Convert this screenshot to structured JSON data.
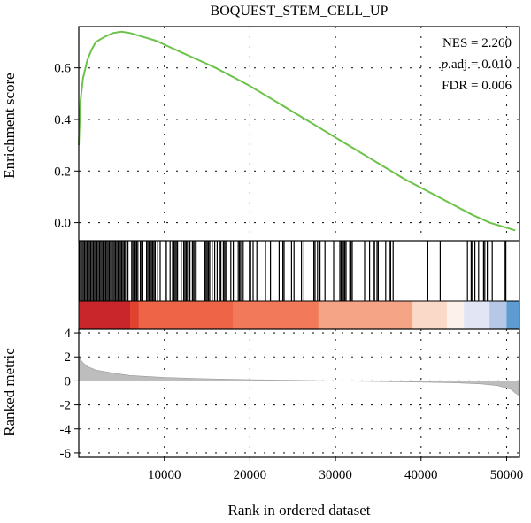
{
  "chart_data": {
    "type": "line",
    "title": "BOQUEST_STEM_CELL_UP",
    "xlabel": "Rank in ordered dataset",
    "stats": {
      "nes": "NES = 2.260",
      "padj_prefix": "p",
      "padj_rest": ".adj = 0.010",
      "fdr": "FDR = 0.006"
    },
    "xlim": [
      0,
      51500
    ],
    "x_ticks": [
      10000,
      20000,
      30000,
      40000,
      50000
    ],
    "x_tick_labels": [
      "10000",
      "20000",
      "30000",
      "40000",
      "50000"
    ],
    "enrichment": {
      "ylabel": "Enrichment score",
      "ylim": [
        -0.07,
        0.76
      ],
      "y_ticks": [
        0.0,
        0.2,
        0.4,
        0.6
      ],
      "y_tick_labels": [
        "0.0",
        "0.2",
        "0.4",
        "0.6"
      ],
      "line_color": "#6cc24a",
      "curve": [
        [
          0,
          0.3
        ],
        [
          200,
          0.47
        ],
        [
          500,
          0.56
        ],
        [
          1000,
          0.63
        ],
        [
          1500,
          0.67
        ],
        [
          2000,
          0.7
        ],
        [
          3000,
          0.72
        ],
        [
          4000,
          0.735
        ],
        [
          5000,
          0.74
        ],
        [
          6000,
          0.735
        ],
        [
          7000,
          0.725
        ],
        [
          8000,
          0.715
        ],
        [
          9000,
          0.705
        ],
        [
          10000,
          0.69
        ],
        [
          12000,
          0.66
        ],
        [
          14000,
          0.63
        ],
        [
          16000,
          0.6
        ],
        [
          18000,
          0.565
        ],
        [
          20000,
          0.53
        ],
        [
          22000,
          0.49
        ],
        [
          24000,
          0.45
        ],
        [
          26000,
          0.41
        ],
        [
          28000,
          0.37
        ],
        [
          30000,
          0.33
        ],
        [
          32000,
          0.29
        ],
        [
          34000,
          0.25
        ],
        [
          36000,
          0.21
        ],
        [
          38000,
          0.17
        ],
        [
          40000,
          0.135
        ],
        [
          42000,
          0.1
        ],
        [
          44000,
          0.065
        ],
        [
          46000,
          0.03
        ],
        [
          48000,
          0.0
        ],
        [
          50000,
          -0.02
        ],
        [
          51000,
          -0.03
        ]
      ]
    },
    "hits_color": "#000000",
    "heat_colors": [
      [
        0,
        "#c8262b"
      ],
      [
        6000,
        "#e0422f"
      ],
      [
        7000,
        "#ee6446"
      ],
      [
        18000,
        "#f27a5a"
      ],
      [
        28000,
        "#f6a486"
      ],
      [
        39000,
        "#fbd9c8"
      ],
      [
        43000,
        "#fdf1eb"
      ],
      [
        45000,
        "#e2e6f4"
      ],
      [
        48000,
        "#b7c8e6"
      ],
      [
        50000,
        "#5d9bd0"
      ],
      [
        51500,
        "#2b6cb4"
      ]
    ],
    "ranked": {
      "ylabel": "Ranked metric",
      "ylim": [
        -6.3,
        4.3
      ],
      "y_ticks": [
        4,
        2,
        0,
        -2,
        -4,
        -6
      ],
      "y_tick_labels": [
        "4",
        "2",
        "0",
        "-2",
        "-4",
        "-6"
      ],
      "fill_color": "#bdbdbd",
      "curve": [
        [
          0,
          2.0
        ],
        [
          500,
          1.5
        ],
        [
          1000,
          1.2
        ],
        [
          2000,
          0.9
        ],
        [
          4000,
          0.65
        ],
        [
          6000,
          0.45
        ],
        [
          10000,
          0.28
        ],
        [
          15000,
          0.18
        ],
        [
          20000,
          0.1
        ],
        [
          25000,
          0.05
        ],
        [
          30000,
          0.0
        ],
        [
          35000,
          -0.05
        ],
        [
          40000,
          -0.1
        ],
        [
          44000,
          -0.16
        ],
        [
          47000,
          -0.25
        ],
        [
          49000,
          -0.4
        ],
        [
          50500,
          -0.7
        ],
        [
          51000,
          -1.0
        ],
        [
          51400,
          -1.2
        ]
      ]
    }
  }
}
